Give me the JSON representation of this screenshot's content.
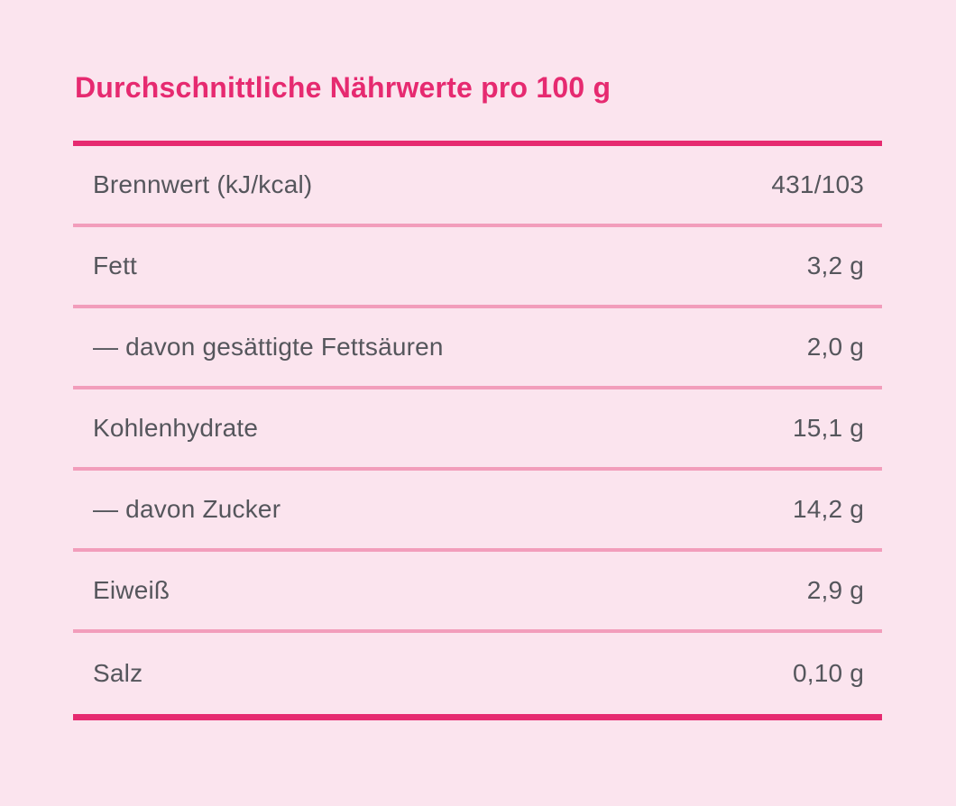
{
  "title": "Durchschnittliche Nährwerte pro 100 g",
  "colors": {
    "background": "#FBE4EE",
    "accent_pink": "#E62A70",
    "divider_pink": "#F29DBB",
    "text_gray": "#55565C"
  },
  "table": {
    "rows": [
      {
        "label": "Brennwert (kJ/kcal)",
        "value": "431/103"
      },
      {
        "label": "Fett",
        "value": "3,2 g"
      },
      {
        "label": "— davon gesättigte Fettsäuren",
        "value": "2,0 g"
      },
      {
        "label": "Kohlenhydrate",
        "value": "15,1 g"
      },
      {
        "label": "— davon Zucker",
        "value": "14,2 g"
      },
      {
        "label": "Eiweiß",
        "value": "2,9 g"
      },
      {
        "label": "Salz",
        "value": "0,10 g"
      }
    ]
  }
}
